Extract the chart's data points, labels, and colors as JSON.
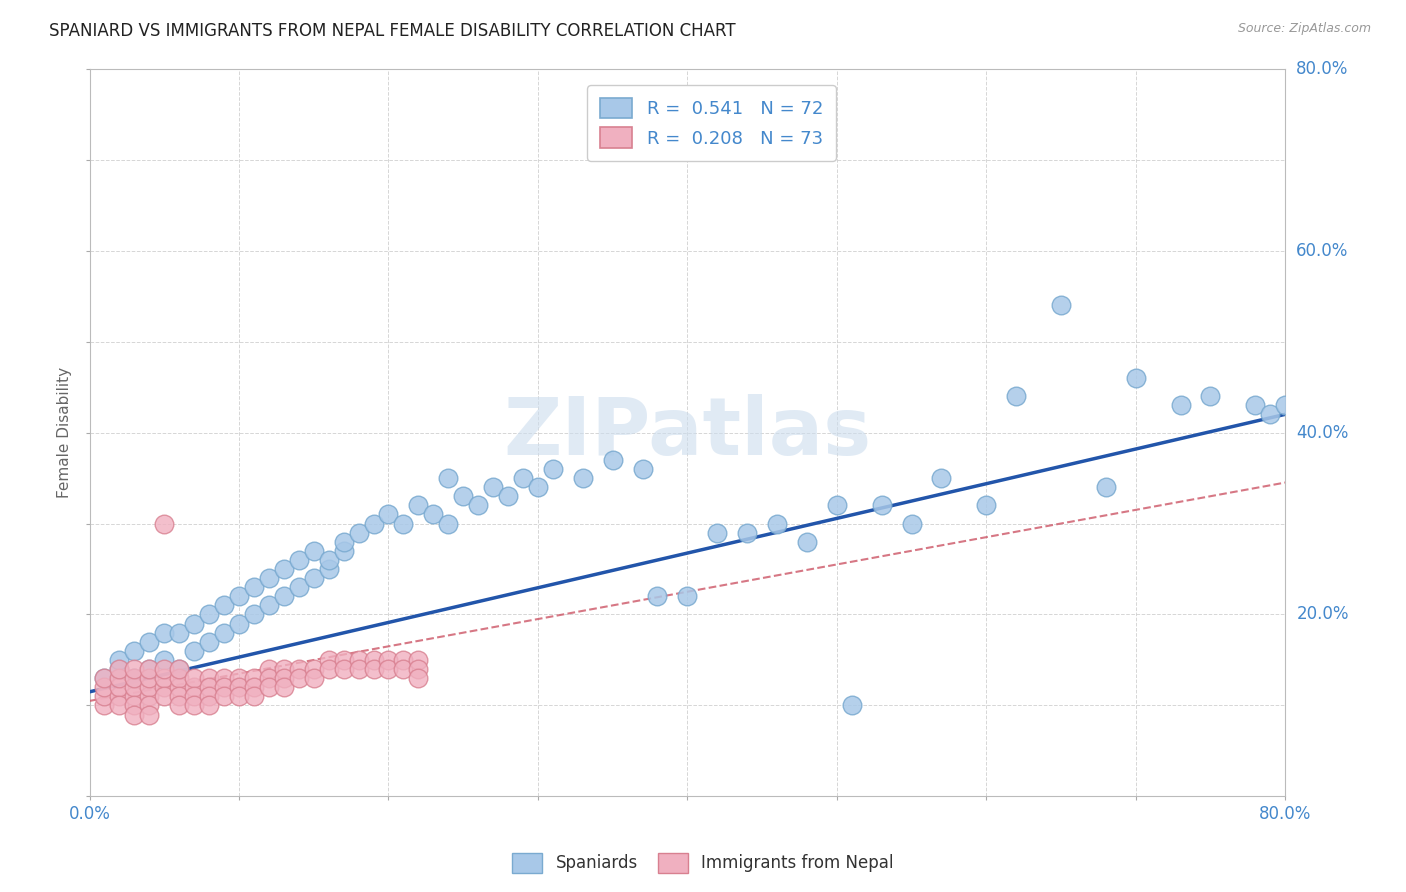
{
  "title": "SPANIARD VS IMMIGRANTS FROM NEPAL FEMALE DISABILITY CORRELATION CHART",
  "source": "Source: ZipAtlas.com",
  "ylabel": "Female Disability",
  "xlim": [
    0.0,
    0.8
  ],
  "ylim": [
    0.0,
    0.8
  ],
  "spaniards_color": "#a8c8e8",
  "spaniards_edge": "#7aaad0",
  "nepal_color": "#f0b0c0",
  "nepal_edge": "#d88090",
  "spaniards_line_color": "#2255aa",
  "nepal_line_color": "#cc5566",
  "spaniards_R": 0.541,
  "spaniards_N": 72,
  "nepal_R": 0.208,
  "nepal_N": 73,
  "legend_label_1": "Spaniards",
  "legend_label_2": "Immigrants from Nepal",
  "background_color": "#ffffff",
  "grid_color": "#cccccc",
  "title_color": "#222222",
  "axis_label_color": "#666666",
  "tick_color": "#4488cc",
  "watermark": "ZIPatlas",
  "spaniards_x": [
    0.01,
    0.02,
    0.02,
    0.03,
    0.03,
    0.04,
    0.04,
    0.05,
    0.05,
    0.06,
    0.06,
    0.07,
    0.07,
    0.08,
    0.08,
    0.09,
    0.09,
    0.1,
    0.1,
    0.11,
    0.11,
    0.12,
    0.12,
    0.13,
    0.13,
    0.14,
    0.14,
    0.15,
    0.15,
    0.16,
    0.16,
    0.17,
    0.17,
    0.18,
    0.19,
    0.2,
    0.21,
    0.22,
    0.23,
    0.24,
    0.24,
    0.25,
    0.26,
    0.27,
    0.28,
    0.29,
    0.3,
    0.31,
    0.33,
    0.35,
    0.37,
    0.38,
    0.4,
    0.42,
    0.44,
    0.46,
    0.48,
    0.5,
    0.51,
    0.53,
    0.55,
    0.57,
    0.6,
    0.62,
    0.65,
    0.68,
    0.7,
    0.73,
    0.75,
    0.78,
    0.79,
    0.8
  ],
  "spaniards_y": [
    0.13,
    0.14,
    0.15,
    0.13,
    0.16,
    0.14,
    0.17,
    0.15,
    0.18,
    0.14,
    0.18,
    0.16,
    0.19,
    0.17,
    0.2,
    0.18,
    0.21,
    0.19,
    0.22,
    0.2,
    0.23,
    0.21,
    0.24,
    0.22,
    0.25,
    0.23,
    0.26,
    0.24,
    0.27,
    0.25,
    0.26,
    0.27,
    0.28,
    0.29,
    0.3,
    0.31,
    0.3,
    0.32,
    0.31,
    0.3,
    0.35,
    0.33,
    0.32,
    0.34,
    0.33,
    0.35,
    0.34,
    0.36,
    0.35,
    0.37,
    0.36,
    0.22,
    0.22,
    0.29,
    0.29,
    0.3,
    0.28,
    0.32,
    0.1,
    0.32,
    0.3,
    0.35,
    0.32,
    0.44,
    0.54,
    0.34,
    0.46,
    0.43,
    0.44,
    0.43,
    0.42,
    0.43
  ],
  "nepal_x": [
    0.01,
    0.01,
    0.01,
    0.01,
    0.02,
    0.02,
    0.02,
    0.02,
    0.02,
    0.03,
    0.03,
    0.03,
    0.03,
    0.03,
    0.03,
    0.04,
    0.04,
    0.04,
    0.04,
    0.04,
    0.04,
    0.05,
    0.05,
    0.05,
    0.05,
    0.05,
    0.06,
    0.06,
    0.06,
    0.06,
    0.06,
    0.07,
    0.07,
    0.07,
    0.07,
    0.08,
    0.08,
    0.08,
    0.08,
    0.09,
    0.09,
    0.09,
    0.1,
    0.1,
    0.1,
    0.11,
    0.11,
    0.11,
    0.12,
    0.12,
    0.12,
    0.13,
    0.13,
    0.13,
    0.14,
    0.14,
    0.15,
    0.15,
    0.16,
    0.16,
    0.17,
    0.17,
    0.18,
    0.18,
    0.19,
    0.19,
    0.2,
    0.2,
    0.21,
    0.21,
    0.22,
    0.22,
    0.22
  ],
  "nepal_y": [
    0.1,
    0.11,
    0.12,
    0.13,
    0.11,
    0.12,
    0.13,
    0.14,
    0.1,
    0.11,
    0.12,
    0.13,
    0.14,
    0.1,
    0.09,
    0.11,
    0.12,
    0.13,
    0.14,
    0.1,
    0.09,
    0.12,
    0.13,
    0.14,
    0.11,
    0.3,
    0.12,
    0.13,
    0.14,
    0.11,
    0.1,
    0.12,
    0.13,
    0.11,
    0.1,
    0.13,
    0.12,
    0.11,
    0.1,
    0.13,
    0.12,
    0.11,
    0.13,
    0.12,
    0.11,
    0.13,
    0.12,
    0.11,
    0.14,
    0.13,
    0.12,
    0.14,
    0.13,
    0.12,
    0.14,
    0.13,
    0.14,
    0.13,
    0.15,
    0.14,
    0.15,
    0.14,
    0.15,
    0.14,
    0.15,
    0.14,
    0.15,
    0.14,
    0.15,
    0.14,
    0.15,
    0.14,
    0.13
  ],
  "span_line_x0": 0.0,
  "span_line_y0": 0.115,
  "span_line_x1": 0.8,
  "span_line_y1": 0.42,
  "nep_line_x0": 0.0,
  "nep_line_y0": 0.105,
  "nep_line_x1": 0.8,
  "nep_line_y1": 0.345
}
